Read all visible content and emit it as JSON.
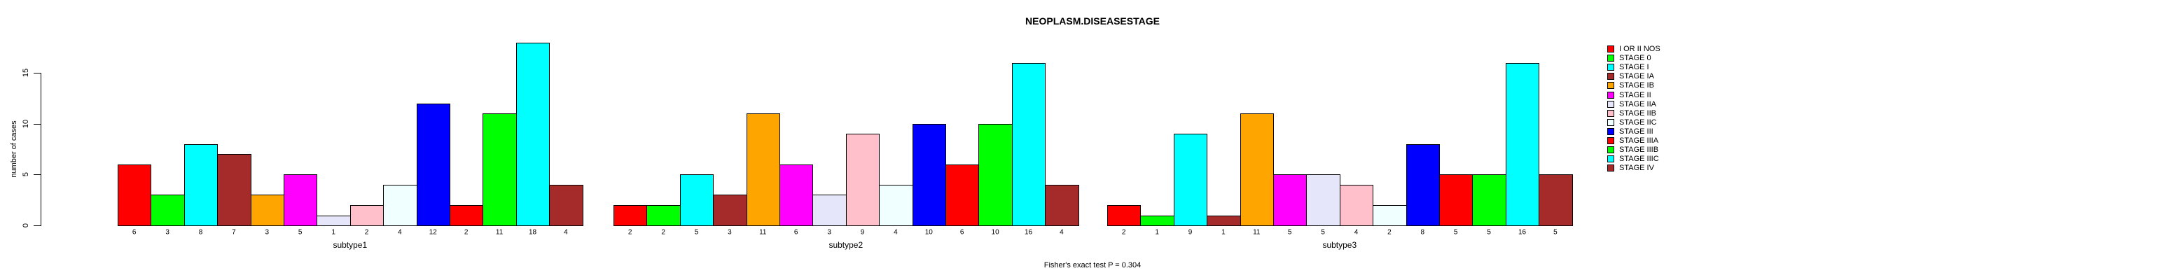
{
  "chart_data": {
    "type": "bar",
    "title": "NEOPLASM.DISEASESTAGE",
    "ylabel": "number of cases",
    "footnote": "Fisher's exact test P = 0.304",
    "legend_position": "right",
    "grid": false,
    "y_axis": {
      "ticks": [
        0,
        5,
        10,
        15
      ],
      "range": [
        0,
        18
      ]
    },
    "categories": [
      "subtype1",
      "subtype2",
      "subtype3"
    ],
    "series": [
      {
        "name": "I OR II NOS",
        "color": "#FF0000",
        "values": [
          6,
          2,
          2
        ]
      },
      {
        "name": "STAGE 0",
        "color": "#00FF00",
        "values": [
          3,
          2,
          1
        ]
      },
      {
        "name": "STAGE I",
        "color": "#00FFFF",
        "values": [
          8,
          5,
          9
        ]
      },
      {
        "name": "STAGE IA",
        "color": "#A52A2A",
        "values": [
          7,
          3,
          1
        ]
      },
      {
        "name": "STAGE IB",
        "color": "#FFA500",
        "values": [
          3,
          11,
          11
        ]
      },
      {
        "name": "STAGE II",
        "color": "#FF00FF",
        "values": [
          5,
          6,
          5
        ]
      },
      {
        "name": "STAGE IIA",
        "color": "#E6E6FA",
        "values": [
          1,
          3,
          5
        ]
      },
      {
        "name": "STAGE IIB",
        "color": "#FFC0CB",
        "values": [
          2,
          9,
          4
        ]
      },
      {
        "name": "STAGE IIC",
        "color": "#F0FFFF",
        "values": [
          4,
          4,
          2
        ]
      },
      {
        "name": "STAGE III",
        "color": "#0000FF",
        "values": [
          12,
          10,
          8
        ]
      },
      {
        "name": "STAGE IIIA",
        "color": "#FF0000",
        "values": [
          2,
          6,
          5
        ]
      },
      {
        "name": "STAGE IIIB",
        "color": "#00FF00",
        "values": [
          11,
          10,
          5
        ]
      },
      {
        "name": "STAGE IIIC",
        "color": "#00FFFF",
        "values": [
          18,
          16,
          16
        ]
      },
      {
        "name": "STAGE IV",
        "color": "#A52A2A",
        "values": [
          4,
          4,
          5
        ]
      }
    ]
  }
}
